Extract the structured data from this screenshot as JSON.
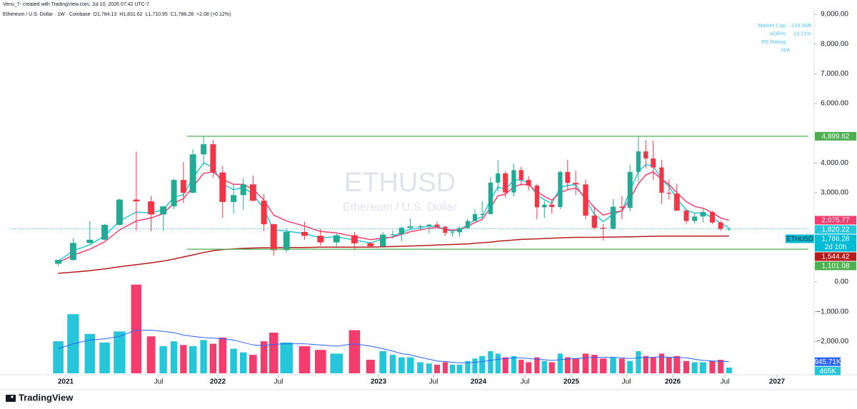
{
  "header": {
    "credit": "Venu_7- created with TradingView.com, Jul 10, 2026 07:42 UTC-7"
  },
  "legend": {
    "symbol": "Ethereum / U.S. Dollar · 1W · Coinbase",
    "items": [
      {
        "key": "O",
        "value": "1,784.13"
      },
      {
        "key": "H",
        "value": "1,831.62"
      },
      {
        "key": "L",
        "value": "1,710.95"
      },
      {
        "key": "C",
        "value": "1,786.28"
      }
    ],
    "change": "+2.08 (+0.12%)"
  },
  "info": {
    "rows": [
      {
        "key": "Market Cap",
        "value": "215.56B"
      },
      {
        "key": "ADR%",
        "value": "13.21%"
      },
      {
        "key": "RS Rating",
        "value": "-"
      }
    ],
    "note": "N/A"
  },
  "footer": {
    "brand": "TradingView"
  },
  "chart_data": {
    "type": "candlestick",
    "watermark": {
      "symbol": "ETHUSD",
      "description": "Ethereum / U.S. Dollar"
    },
    "x": [
      2020.96,
      2021.04,
      2021.13,
      2021.21,
      2021.29,
      2021.38,
      2021.46,
      2021.54,
      2021.63,
      2021.71,
      2021.79,
      2021.88,
      2021.96,
      2022.04,
      2022.13,
      2022.21,
      2022.29,
      2022.38,
      2022.46,
      2022.54,
      2022.63,
      2022.71,
      2022.79,
      2022.88,
      2022.96,
      2023.04,
      2023.13,
      2023.21,
      2023.29,
      2023.38,
      2023.46,
      2023.54,
      2023.63,
      2023.71,
      2023.79,
      2023.88,
      2023.96,
      2024.04,
      2024.13,
      2024.21,
      2024.29,
      2024.38,
      2024.46,
      2024.54,
      2024.63,
      2024.71,
      2024.79,
      2024.88,
      2024.96,
      2025.04,
      2025.13,
      2025.21,
      2025.29,
      2025.38,
      2025.46,
      2025.54,
      2025.63,
      2025.71,
      2025.79,
      2025.88,
      2025.96,
      2026.04,
      2026.13,
      2026.21,
      2026.29,
      2026.38,
      2026.46,
      2026.54
    ],
    "open": [
      610,
      740,
      1310,
      1420,
      1920,
      2770,
      2710,
      2270,
      2540,
      3430,
      3000,
      4290,
      4630,
      3680,
      2690,
      2920,
      3280,
      2730,
      1940,
      1070,
      1680,
      1550,
      1330,
      1570,
      1300,
      1200,
      1590,
      1600,
      1820,
      1870,
      1870,
      1930,
      1860,
      1650,
      1670,
      1810,
      2050,
      2280,
      2280,
      3340,
      3650,
      3010,
      3760,
      3430,
      3240,
      2510,
      2600,
      2520,
      3700,
      3330,
      3280,
      2230,
      1820,
      1790,
      2530,
      2490,
      3700,
      4390,
      4150,
      3850,
      3000,
      2970,
      2400,
      2050,
      2200,
      2350,
      2000,
      1780
    ],
    "high": [
      750,
      1470,
      2040,
      1950,
      2800,
      4380,
      2890,
      2550,
      3470,
      4030,
      4460,
      4890,
      4780,
      3900,
      3280,
      3480,
      3580,
      2960,
      1970,
      1780,
      2030,
      1790,
      1660,
      1680,
      1350,
      1680,
      1740,
      1860,
      2140,
      1930,
      1930,
      2030,
      1870,
      1750,
      1860,
      2130,
      2450,
      2720,
      3520,
      4090,
      3730,
      3980,
      3880,
      3560,
      3300,
      2720,
      2770,
      3740,
      4110,
      3740,
      3440,
      2550,
      1950,
      2790,
      2880,
      3940,
      4890,
      4770,
      4750,
      4100,
      3450,
      3300,
      2450,
      2300,
      2450,
      2390,
      2050,
      1831.62
    ],
    "low": [
      530,
      710,
      1290,
      1400,
      1900,
      1730,
      1700,
      1720,
      2450,
      2650,
      2980,
      3960,
      3510,
      2160,
      2300,
      2430,
      2700,
      1710,
      880,
      1000,
      1420,
      1220,
      1190,
      1070,
      1150,
      1190,
      1460,
      1370,
      1760,
      1760,
      1630,
      1830,
      1550,
      1530,
      1520,
      1770,
      2040,
      2100,
      2270,
      3050,
      2840,
      2870,
      3230,
      3080,
      2110,
      2150,
      2300,
      2450,
      3100,
      2920,
      2120,
      1760,
      1390,
      1750,
      2110,
      2370,
      3350,
      3820,
      3440,
      2620,
      2770,
      2380,
      1950,
      1960,
      2000,
      1950,
      1710,
      1710.95
    ],
    "close": [
      740,
      1310,
      1420,
      1920,
      2770,
      2710,
      2270,
      2540,
      3430,
      3000,
      4290,
      4630,
      3680,
      2690,
      2920,
      3280,
      2730,
      1940,
      1070,
      1680,
      1550,
      1330,
      1570,
      1300,
      1200,
      1590,
      1600,
      1820,
      1870,
      1870,
      1930,
      1860,
      1650,
      1670,
      1810,
      2050,
      2280,
      2280,
      3340,
      3650,
      3010,
      3760,
      3430,
      3240,
      2510,
      2600,
      2520,
      3700,
      3330,
      3280,
      2230,
      1820,
      1790,
      2530,
      2490,
      3700,
      4390,
      4150,
      3850,
      3000,
      2970,
      2400,
      2050,
      2200,
      2350,
      2000,
      1780,
      1786.28
    ],
    "colors": {
      "up": "#22ab94",
      "down": "#f23645"
    },
    "ma": [
      {
        "color": "#26c6da",
        "values": [
          700,
          1050,
          1250,
          1550,
          2050,
          2350,
          2320,
          2430,
          2850,
          2930,
          3500,
          4000,
          3850,
          3300,
          3100,
          3180,
          2950,
          2450,
          1750,
          1710,
          1630,
          1480,
          1520,
          1410,
          1310,
          1450,
          1520,
          1670,
          1770,
          1820,
          1880,
          1870,
          1760,
          1710,
          1760,
          1910,
          2100,
          2190,
          2760,
          3200,
          3100,
          3430,
          3430,
          3330,
          2920,
          2760,
          2640,
          3170,
          3250,
          3265,
          2750,
          2280,
          2030,
          2280,
          2390,
          3050,
          3720,
          3940,
          3900,
          3450,
          3210,
          2800,
          2420,
          2310,
          2330,
          2160,
          1970,
          1820.22
        ]
      },
      {
        "color": "#f23e6e",
        "values": [
          650,
          900,
          1100,
          1350,
          1750,
          2050,
          2150,
          2300,
          2650,
          2800,
          3200,
          3650,
          3700,
          3450,
          3280,
          3280,
          3120,
          2750,
          2250,
          2050,
          1880,
          1700,
          1650,
          1530,
          1420,
          1470,
          1510,
          1600,
          1690,
          1750,
          1810,
          1830,
          1770,
          1740,
          1760,
          1860,
          2000,
          2100,
          2500,
          2900,
          2950,
          3200,
          3280,
          3270,
          3030,
          2880,
          2750,
          3000,
          3100,
          3160,
          2850,
          2500,
          2250,
          2340,
          2380,
          2800,
          3300,
          3600,
          3700,
          3450,
          3280,
          3000,
          2700,
          2540,
          2480,
          2330,
          2150,
          2075.77
        ]
      },
      {
        "color": "#b71c1c",
        "values": [
          290,
          330,
          380,
          440,
          510,
          580,
          640,
          700,
          770,
          840,
          910,
          990,
          1050,
          1090,
          1110,
          1130,
          1140,
          1150,
          1150,
          1160,
          1160,
          1170,
          1170,
          1170,
          1170,
          1180,
          1190,
          1200,
          1210,
          1220,
          1230,
          1240,
          1250,
          1260,
          1270,
          1280,
          1300,
          1320,
          1340,
          1370,
          1390,
          1410,
          1430,
          1440,
          1450,
          1460,
          1470,
          1480,
          1490,
          1500,
          1500,
          1500,
          1505,
          1510,
          1515,
          1520,
          1525,
          1530,
          1535,
          1538,
          1540,
          1541,
          1542,
          1543,
          1543.5,
          1544,
          1544.2,
          1544.42
        ]
      }
    ],
    "volume": {
      "lim": [
        0,
        7300
      ],
      "up_color": "#26c6da",
      "down_color": "#f23e6e",
      "ma_color": "#2962ff",
      "values": [
        2600,
        4800,
        3200,
        2500,
        3400,
        7200,
        3000,
        2200,
        2600,
        2300,
        2200,
        2700,
        2400,
        2900,
        2000,
        1700,
        1500,
        2600,
        3300,
        2500,
        2200,
        1900,
        1600,
        3500,
        1100,
        1800,
        1500,
        1300,
        1300,
        900,
        800,
        700,
        900,
        700,
        700,
        1000,
        1200,
        1400,
        1800,
        1600,
        1300,
        1400,
        1100,
        900,
        1300,
        1000,
        900,
        1600,
        1300,
        1200,
        1600,
        1500,
        1200,
        1300,
        1200,
        1000,
        1800,
        1400,
        1300,
        1600,
        1300,
        1400,
        1000,
        900,
        900,
        1000,
        1100,
        465
      ],
      "ma": [
        2000,
        2400,
        2700,
        2800,
        3000,
        3500,
        3500,
        3400,
        3300,
        3100,
        3000,
        2900,
        2850,
        2800,
        2700,
        2500,
        2300,
        2250,
        2350,
        2400,
        2400,
        2300,
        2200,
        2400,
        2200,
        2000,
        1800,
        1600,
        1500,
        1300,
        1150,
        1000,
        950,
        900,
        850,
        850,
        900,
        950,
        1050,
        1150,
        1200,
        1250,
        1250,
        1200,
        1150,
        1100,
        1050,
        1100,
        1150,
        1200,
        1250,
        1300,
        1300,
        1300,
        1250,
        1200,
        1250,
        1300,
        1300,
        1350,
        1300,
        1300,
        1250,
        1150,
        1050,
        1000,
        980,
        945.71
      ],
      "markers": [
        {
          "value": 945.71,
          "label": "945.71K",
          "color": "#2962ff"
        },
        {
          "value": 465,
          "label": "465K",
          "color": "#26c6da"
        }
      ]
    },
    "markers": [
      {
        "value": 4899.62,
        "label": "4,899.62",
        "color": "#4caf50",
        "level": true
      },
      {
        "value": 2075.77,
        "label": "2,075.77",
        "color": "#f23e6e"
      },
      {
        "value": 1820.22,
        "label": "1,820.22",
        "color": "#26c6da"
      },
      {
        "value": 1786.28,
        "label": "1,786.28",
        "color": "#00bcd4",
        "tag": "ETHUSD",
        "countdown": "2d 10h"
      },
      {
        "value": 1544.42,
        "label": "1,544.42",
        "color": "#b71c1c"
      },
      {
        "value": 1101.08,
        "label": "1,101.08",
        "color": "#4caf50",
        "level": true
      }
    ],
    "ylim": [
      -3000,
      9000
    ],
    "yticks": [
      {
        "value": 9000,
        "label": "9,000.00"
      },
      {
        "value": 8000,
        "label": "8,000.00"
      },
      {
        "value": 7000,
        "label": "7,000.00"
      },
      {
        "value": 6000,
        "label": "6,000.00"
      },
      {
        "value": 4000,
        "label": "4,000.00"
      },
      {
        "value": 3000,
        "label": "3,000.00"
      },
      {
        "value": 0,
        "label": "0.00"
      },
      {
        "value": -1000,
        "label": "−1,000.00"
      },
      {
        "value": -2000,
        "label": "−2,000.00"
      }
    ],
    "xlim": [
      2020.7,
      2027.3
    ],
    "xticks": [
      2021,
      {
        "value": 2021.5,
        "label": "Jul"
      },
      2022,
      {
        "value": 2022.5,
        "label": "Jul"
      },
      2023,
      {
        "value": 2023.5,
        "label": "Jul"
      },
      2024,
      {
        "value": 2024.5,
        "label": "Jul"
      },
      2025,
      {
        "value": 2025.5,
        "label": "Jul"
      },
      2026,
      {
        "value": 2026.5,
        "label": "Jul"
      },
      2027
    ],
    "grid": false
  }
}
